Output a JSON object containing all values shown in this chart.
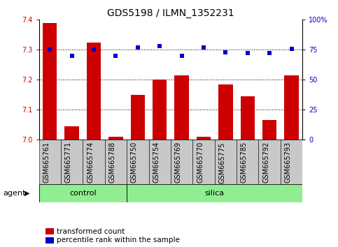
{
  "title": "GDS5198 / ILMN_1352231",
  "samples": [
    "GSM665761",
    "GSM665771",
    "GSM665774",
    "GSM665788",
    "GSM665750",
    "GSM665754",
    "GSM665769",
    "GSM665770",
    "GSM665775",
    "GSM665785",
    "GSM665792",
    "GSM665793"
  ],
  "bar_values": [
    7.39,
    7.045,
    7.325,
    7.01,
    7.15,
    7.2,
    7.215,
    7.01,
    7.185,
    7.145,
    7.065,
    7.215
  ],
  "percentile_values": [
    75,
    70,
    75,
    70,
    77,
    78,
    70,
    77,
    73,
    72,
    72,
    76
  ],
  "control_count": 4,
  "silica_count": 8,
  "ylim_left": [
    7.0,
    7.4
  ],
  "ylim_right": [
    0,
    100
  ],
  "yticks_left": [
    7.0,
    7.1,
    7.2,
    7.3,
    7.4
  ],
  "yticks_right": [
    0,
    25,
    50,
    75,
    100
  ],
  "ytick_labels_right": [
    "0",
    "25",
    "50",
    "75",
    "100%"
  ],
  "bar_color": "#cc0000",
  "percentile_color": "#0000cc",
  "green_color": "#90ee90",
  "gray_color": "#c8c8c8",
  "legend_items": [
    "transformed count",
    "percentile rank within the sample"
  ],
  "agent_label": "agent",
  "group_labels": [
    "control",
    "silica"
  ],
  "title_fontsize": 10,
  "tick_fontsize": 7,
  "label_fontsize": 8
}
